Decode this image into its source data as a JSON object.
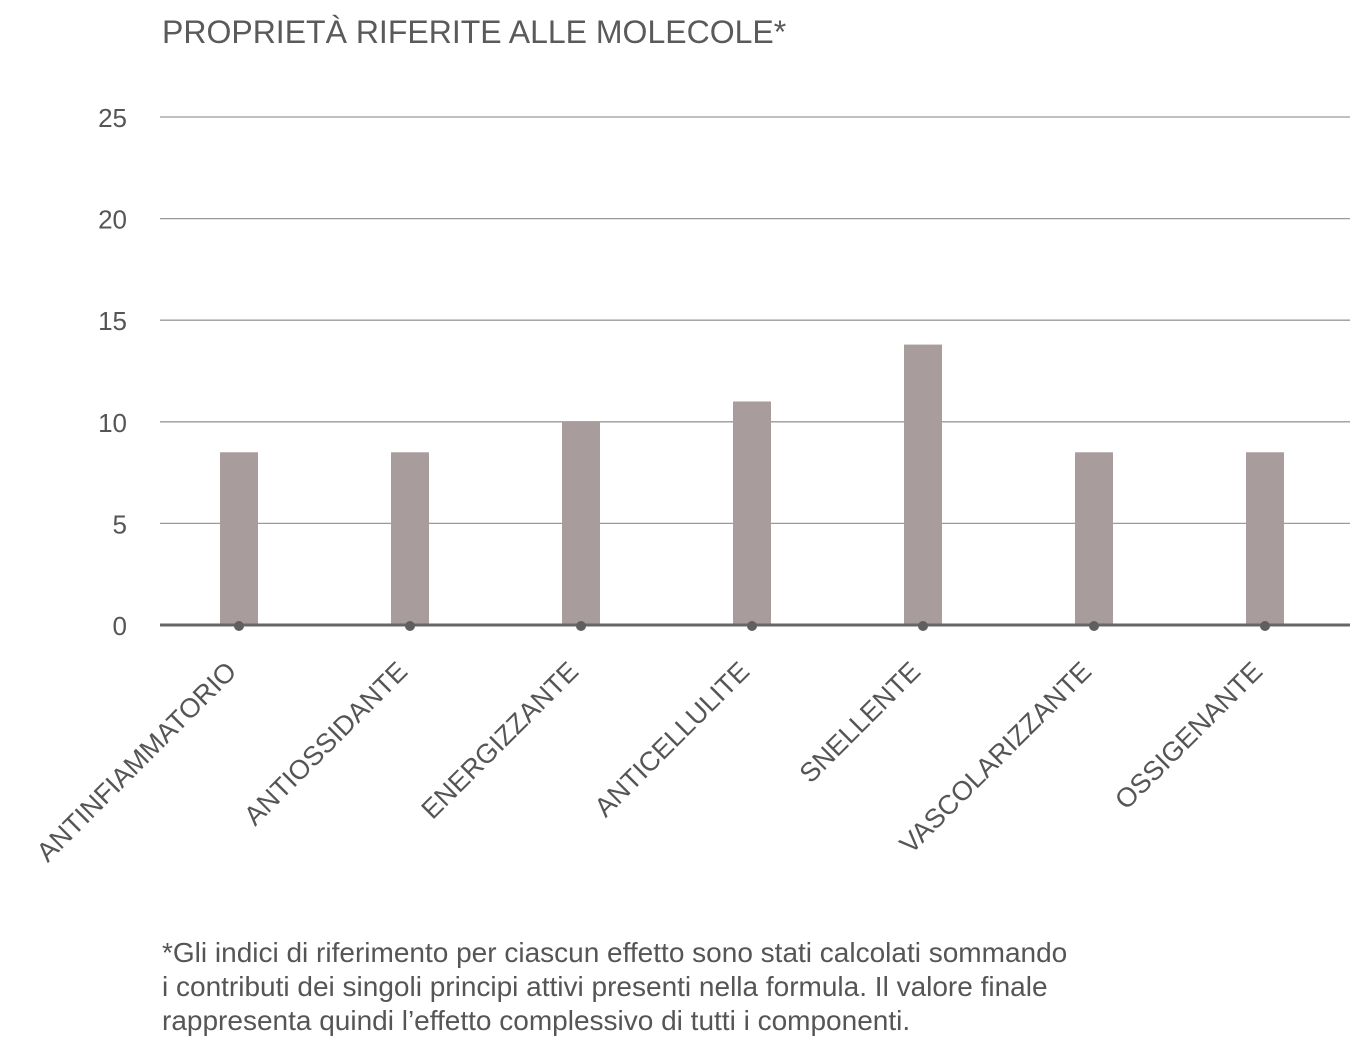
{
  "chart_data": {
    "type": "bar",
    "title": "PROPRIETÀ RIFERITE ALLE MOLECOLE*",
    "categories": [
      "ANTINFIAMMATORIO",
      "ANTIOSSIDANTE",
      "ENERGIZZANTE",
      "ANTICELLULITE",
      "SNELLENTE",
      "VASCOLARIZZANTE",
      "OSSIGENANTE"
    ],
    "values": [
      8.5,
      8.5,
      10,
      11,
      13.8,
      8.5,
      8.5
    ],
    "ylim": [
      0,
      25
    ],
    "yticks": [
      0,
      5,
      10,
      15,
      20,
      25
    ],
    "xlabel": "",
    "ylabel": "",
    "grid": true,
    "legend": "none",
    "bar_color": "#a89d9c",
    "marker_color": "#5f5f5f"
  },
  "footnote": {
    "line1": "*Gli indici di riferimento per ciascun effetto sono stati calcolati sommando",
    "line2": "i contributi dei singoli principi attivi presenti nella formula. Il valore finale",
    "line3": "rappresenta quindi l’effetto complessivo di tutti i componenti."
  }
}
